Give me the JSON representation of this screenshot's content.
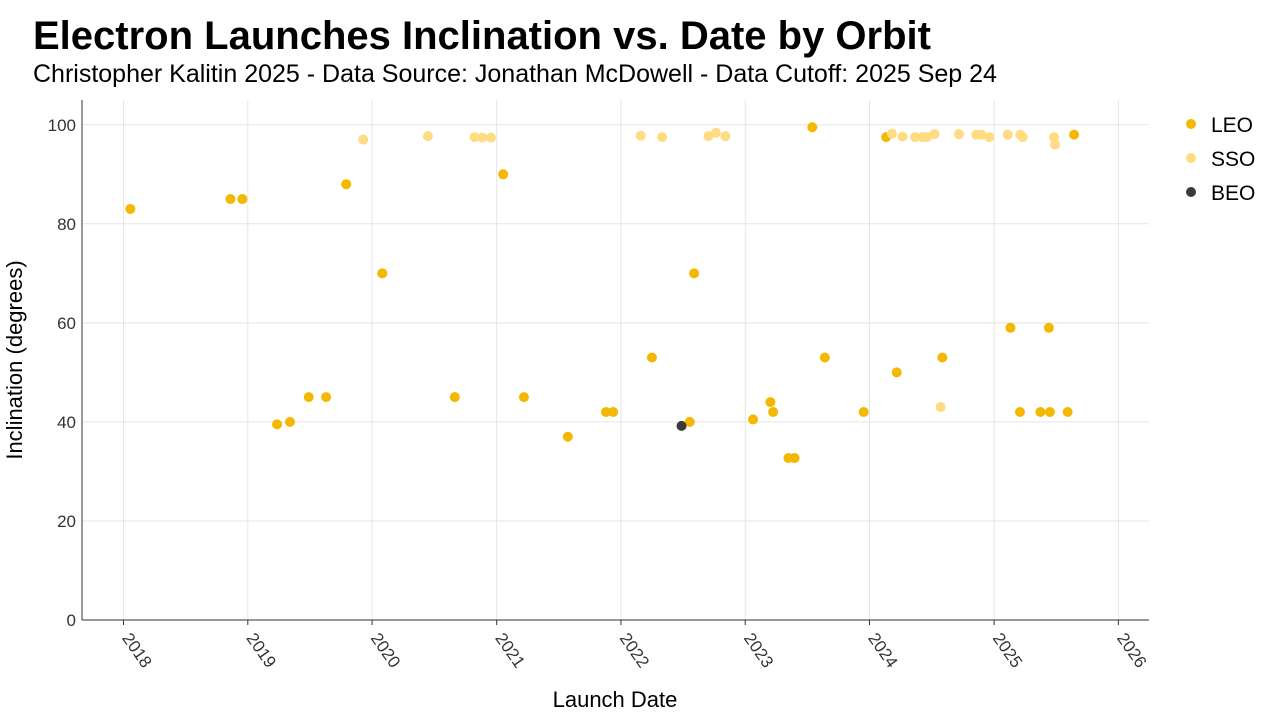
{
  "chart_data": {
    "type": "scatter",
    "title": "Electron Launches Inclination vs. Date by Orbit",
    "subtitle": "Christopher Kalitin 2025 - Data Source: Jonathan McDowell - Data Cutoff: 2025 Sep 24",
    "xlabel": "Launch Date",
    "ylabel": "Inclination (degrees)",
    "xlim": [
      "2017-09-01",
      "2026-04-01"
    ],
    "ylim": [
      0,
      105
    ],
    "xticks": [
      "2018",
      "2019",
      "2020",
      "2021",
      "2022",
      "2023",
      "2024",
      "2025",
      "2026"
    ],
    "yticks": [
      0,
      20,
      40,
      60,
      80,
      100
    ],
    "grid": true,
    "legend_position": "right",
    "series": [
      {
        "name": "LEO",
        "color": "#f5b800",
        "points": [
          [
            "2018-01-21",
            83
          ],
          [
            "2018-11-11",
            85
          ],
          [
            "2018-12-16",
            85
          ],
          [
            "2019-03-28",
            39.5
          ],
          [
            "2019-05-05",
            40
          ],
          [
            "2019-06-29",
            45
          ],
          [
            "2019-08-19",
            45
          ],
          [
            "2019-10-17",
            88
          ],
          [
            "2020-01-31",
            70
          ],
          [
            "2020-08-31",
            45
          ],
          [
            "2021-01-20",
            90
          ],
          [
            "2021-03-22",
            45
          ],
          [
            "2021-07-29",
            37
          ],
          [
            "2021-11-18",
            42
          ],
          [
            "2021-12-09",
            42
          ],
          [
            "2022-04-02",
            53
          ],
          [
            "2022-07-22",
            40
          ],
          [
            "2022-08-04",
            70
          ],
          [
            "2023-01-24",
            40.5
          ],
          [
            "2023-03-16",
            44
          ],
          [
            "2023-03-24",
            42
          ],
          [
            "2023-05-08",
            32.7
          ],
          [
            "2023-05-26",
            32.7
          ],
          [
            "2023-07-17",
            99.5
          ],
          [
            "2023-08-23",
            53
          ],
          [
            "2023-12-15",
            42
          ],
          [
            "2024-02-19",
            97.5
          ],
          [
            "2024-03-21",
            50
          ],
          [
            "2024-08-02",
            53
          ],
          [
            "2025-02-18",
            59
          ],
          [
            "2025-03-18",
            42
          ],
          [
            "2025-05-17",
            42
          ],
          [
            "2025-06-11",
            59
          ],
          [
            "2025-06-14",
            42
          ],
          [
            "2025-08-05",
            42
          ],
          [
            "2025-08-24",
            98
          ]
        ]
      },
      {
        "name": "SSO",
        "color": "#ffdc82",
        "points": [
          [
            "2019-12-06",
            97
          ],
          [
            "2020-06-13",
            97.7
          ],
          [
            "2020-10-28",
            97.5
          ],
          [
            "2020-11-20",
            97.4
          ],
          [
            "2020-12-15",
            97.4
          ],
          [
            "2022-02-28",
            97.8
          ],
          [
            "2022-05-02",
            97.5
          ],
          [
            "2022-09-15",
            97.7
          ],
          [
            "2022-10-07",
            98.4
          ],
          [
            "2022-11-04",
            97.7
          ],
          [
            "2024-03-07",
            98.2
          ],
          [
            "2024-04-07",
            97.6
          ],
          [
            "2024-05-14",
            97.5
          ],
          [
            "2024-06-05",
            97.5
          ],
          [
            "2024-06-18",
            97.5
          ],
          [
            "2024-07-10",
            98.1
          ],
          [
            "2024-07-28",
            43
          ],
          [
            "2024-09-20",
            98.1
          ],
          [
            "2024-11-10",
            98
          ],
          [
            "2024-11-25",
            98
          ],
          [
            "2024-12-18",
            97.5
          ],
          [
            "2025-02-10",
            98
          ],
          [
            "2025-03-19",
            98
          ],
          [
            "2025-03-26",
            97.5
          ],
          [
            "2025-06-26",
            97.5
          ],
          [
            "2025-06-29",
            96
          ]
        ]
      },
      {
        "name": "BEO",
        "color": "#3a3a3a",
        "points": [
          [
            "2022-06-28",
            39.2
          ]
        ]
      }
    ]
  }
}
